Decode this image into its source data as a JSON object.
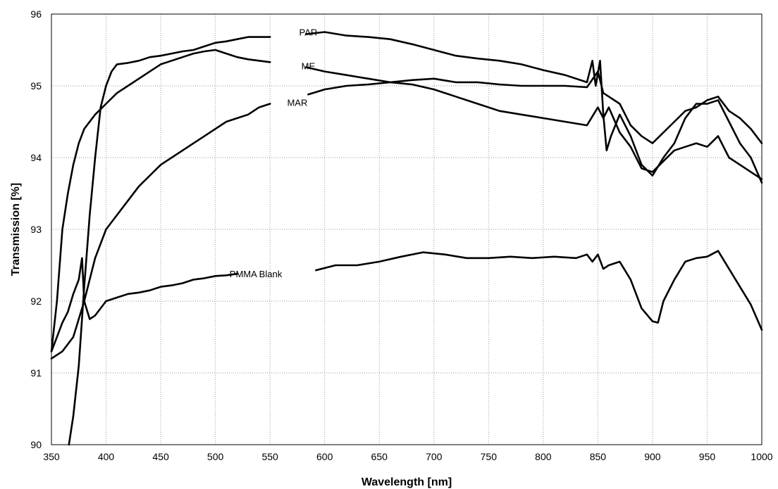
{
  "chart_data": {
    "type": "line",
    "title": "",
    "xlabel": "Wavelength [nm]",
    "ylabel": "Transmission [%]",
    "xlim": [
      350,
      1000
    ],
    "ylim": [
      90,
      96
    ],
    "xticks": [
      350,
      400,
      450,
      500,
      550,
      600,
      650,
      700,
      750,
      800,
      850,
      900,
      950,
      1000
    ],
    "yticks": [
      90,
      91,
      92,
      93,
      94,
      95,
      96
    ],
    "grid": true,
    "legend": "inline labels",
    "line_color": "#000000",
    "series": [
      {
        "name": "PAR",
        "label_at": [
          585,
          95.75
        ],
        "segments": [
          [
            [
              366,
              90.0
            ],
            [
              370,
              90.4
            ],
            [
              375,
              91.1
            ],
            [
              380,
              92.2
            ],
            [
              385,
              93.2
            ],
            [
              390,
              94.0
            ],
            [
              395,
              94.7
            ],
            [
              400,
              95.0
            ],
            [
              405,
              95.2
            ],
            [
              410,
              95.3
            ],
            [
              420,
              95.32
            ],
            [
              430,
              95.35
            ],
            [
              440,
              95.4
            ],
            [
              450,
              95.42
            ],
            [
              460,
              95.45
            ],
            [
              470,
              95.48
            ],
            [
              480,
              95.5
            ],
            [
              490,
              95.55
            ],
            [
              500,
              95.6
            ],
            [
              510,
              95.62
            ],
            [
              520,
              95.65
            ],
            [
              530,
              95.68
            ],
            [
              540,
              95.68
            ],
            [
              550,
              95.68
            ]
          ],
          [
            [
              583,
              95.72
            ],
            [
              600,
              95.75
            ],
            [
              620,
              95.7
            ],
            [
              640,
              95.68
            ],
            [
              660,
              95.65
            ],
            [
              680,
              95.58
            ],
            [
              700,
              95.5
            ],
            [
              720,
              95.42
            ],
            [
              740,
              95.38
            ],
            [
              760,
              95.35
            ],
            [
              780,
              95.3
            ],
            [
              800,
              95.22
            ],
            [
              820,
              95.15
            ],
            [
              840,
              95.05
            ],
            [
              845,
              95.35
            ],
            [
              848,
              95.0
            ],
            [
              852,
              95.35
            ],
            [
              855,
              94.6
            ],
            [
              858,
              94.1
            ],
            [
              862,
              94.3
            ],
            [
              870,
              94.6
            ],
            [
              880,
              94.3
            ],
            [
              890,
              93.9
            ],
            [
              900,
              93.75
            ],
            [
              910,
              94.0
            ],
            [
              920,
              94.2
            ],
            [
              930,
              94.55
            ],
            [
              940,
              94.75
            ],
            [
              950,
              94.75
            ],
            [
              960,
              94.8
            ],
            [
              970,
              94.5
            ],
            [
              980,
              94.2
            ],
            [
              990,
              94.0
            ],
            [
              1000,
              93.65
            ]
          ]
        ]
      },
      {
        "name": "ME",
        "label_at": [
          585,
          95.28
        ],
        "segments": [
          [
            [
              350,
              91.3
            ],
            [
              355,
              92.0
            ],
            [
              360,
              93.0
            ],
            [
              365,
              93.5
            ],
            [
              370,
              93.9
            ],
            [
              375,
              94.2
            ],
            [
              380,
              94.4
            ],
            [
              390,
              94.6
            ],
            [
              400,
              94.75
            ],
            [
              410,
              94.9
            ],
            [
              420,
              95.0
            ],
            [
              430,
              95.1
            ],
            [
              440,
              95.2
            ],
            [
              450,
              95.3
            ],
            [
              460,
              95.35
            ],
            [
              470,
              95.4
            ],
            [
              480,
              95.45
            ],
            [
              490,
              95.48
            ],
            [
              500,
              95.5
            ],
            [
              510,
              95.45
            ],
            [
              520,
              95.4
            ],
            [
              530,
              95.37
            ],
            [
              540,
              95.35
            ],
            [
              550,
              95.33
            ]
          ],
          [
            [
              583,
              95.26
            ],
            [
              600,
              95.2
            ],
            [
              620,
              95.15
            ],
            [
              640,
              95.1
            ],
            [
              660,
              95.05
            ],
            [
              680,
              95.02
            ],
            [
              700,
              94.95
            ],
            [
              720,
              94.85
            ],
            [
              740,
              94.75
            ],
            [
              760,
              94.65
            ],
            [
              780,
              94.6
            ],
            [
              800,
              94.55
            ],
            [
              820,
              94.5
            ],
            [
              840,
              94.45
            ],
            [
              850,
              94.7
            ],
            [
              855,
              94.55
            ],
            [
              860,
              94.7
            ],
            [
              870,
              94.35
            ],
            [
              880,
              94.15
            ],
            [
              890,
              93.85
            ],
            [
              900,
              93.8
            ],
            [
              910,
              93.95
            ],
            [
              920,
              94.1
            ],
            [
              930,
              94.15
            ],
            [
              940,
              94.2
            ],
            [
              950,
              94.15
            ],
            [
              960,
              94.3
            ],
            [
              970,
              94.0
            ],
            [
              980,
              93.9
            ],
            [
              990,
              93.8
            ],
            [
              1000,
              93.7
            ]
          ]
        ]
      },
      {
        "name": "MAR",
        "label_at": [
          575,
          94.77
        ],
        "segments": [
          [
            [
              350,
              91.2
            ],
            [
              360,
              91.3
            ],
            [
              370,
              91.5
            ],
            [
              380,
              92.0
            ],
            [
              390,
              92.6
            ],
            [
              400,
              93.0
            ],
            [
              410,
              93.2
            ],
            [
              420,
              93.4
            ],
            [
              430,
              93.6
            ],
            [
              440,
              93.75
            ],
            [
              450,
              93.9
            ],
            [
              460,
              94.0
            ],
            [
              470,
              94.1
            ],
            [
              480,
              94.2
            ],
            [
              490,
              94.3
            ],
            [
              500,
              94.4
            ],
            [
              510,
              94.5
            ],
            [
              520,
              94.55
            ],
            [
              530,
              94.6
            ],
            [
              540,
              94.7
            ],
            [
              550,
              94.75
            ]
          ],
          [
            [
              585,
              94.88
            ],
            [
              600,
              94.95
            ],
            [
              620,
              95.0
            ],
            [
              640,
              95.02
            ],
            [
              660,
              95.05
            ],
            [
              680,
              95.08
            ],
            [
              700,
              95.1
            ],
            [
              720,
              95.05
            ],
            [
              740,
              95.05
            ],
            [
              760,
              95.02
            ],
            [
              780,
              95.0
            ],
            [
              800,
              95.0
            ],
            [
              820,
              95.0
            ],
            [
              840,
              94.98
            ],
            [
              850,
              95.2
            ],
            [
              855,
              94.9
            ],
            [
              860,
              94.85
            ],
            [
              870,
              94.75
            ],
            [
              880,
              94.45
            ],
            [
              890,
              94.3
            ],
            [
              900,
              94.2
            ],
            [
              910,
              94.35
            ],
            [
              920,
              94.5
            ],
            [
              930,
              94.65
            ],
            [
              940,
              94.7
            ],
            [
              950,
              94.8
            ],
            [
              960,
              94.85
            ],
            [
              970,
              94.65
            ],
            [
              980,
              94.55
            ],
            [
              990,
              94.4
            ],
            [
              1000,
              94.2
            ]
          ]
        ]
      },
      {
        "name": "PMMA Blank",
        "label_at": [
          537,
          92.38
        ],
        "segments": [
          [
            [
              350,
              91.3
            ],
            [
              355,
              91.5
            ],
            [
              360,
              91.7
            ],
            [
              365,
              91.85
            ],
            [
              370,
              92.1
            ],
            [
              375,
              92.3
            ],
            [
              378,
              92.6
            ],
            [
              380,
              92.0
            ],
            [
              385,
              91.75
            ],
            [
              390,
              91.8
            ],
            [
              400,
              92.0
            ],
            [
              410,
              92.05
            ],
            [
              420,
              92.1
            ],
            [
              430,
              92.12
            ],
            [
              440,
              92.15
            ],
            [
              450,
              92.2
            ],
            [
              460,
              92.22
            ],
            [
              470,
              92.25
            ],
            [
              480,
              92.3
            ],
            [
              490,
              92.32
            ],
            [
              500,
              92.35
            ],
            [
              510,
              92.36
            ],
            [
              520,
              92.38
            ]
          ],
          [
            [
              592,
              92.43
            ],
            [
              610,
              92.5
            ],
            [
              630,
              92.5
            ],
            [
              650,
              92.55
            ],
            [
              670,
              92.62
            ],
            [
              690,
              92.68
            ],
            [
              710,
              92.65
            ],
            [
              730,
              92.6
            ],
            [
              750,
              92.6
            ],
            [
              770,
              92.62
            ],
            [
              790,
              92.6
            ],
            [
              810,
              92.62
            ],
            [
              830,
              92.6
            ],
            [
              840,
              92.65
            ],
            [
              845,
              92.55
            ],
            [
              850,
              92.65
            ],
            [
              855,
              92.45
            ],
            [
              860,
              92.5
            ],
            [
              870,
              92.55
            ],
            [
              880,
              92.3
            ],
            [
              890,
              91.9
            ],
            [
              900,
              91.72
            ],
            [
              905,
              91.7
            ],
            [
              910,
              92.0
            ],
            [
              920,
              92.3
            ],
            [
              930,
              92.55
            ],
            [
              940,
              92.6
            ],
            [
              950,
              92.62
            ],
            [
              960,
              92.7
            ],
            [
              970,
              92.45
            ],
            [
              980,
              92.2
            ],
            [
              990,
              91.95
            ],
            [
              1000,
              91.6
            ]
          ]
        ]
      }
    ]
  }
}
